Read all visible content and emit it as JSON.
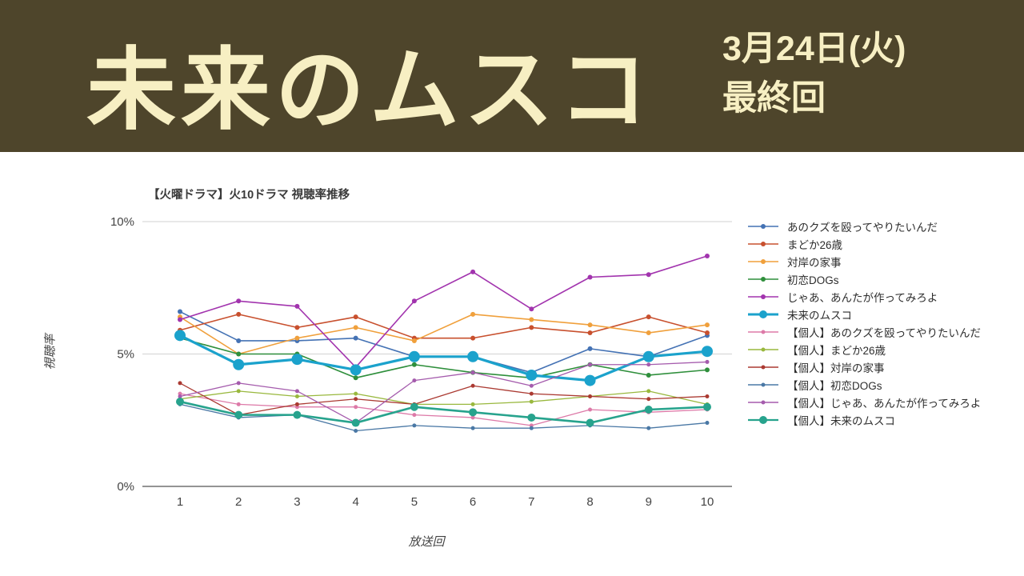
{
  "banner": {
    "title": "未来のムスコ",
    "date_line1": "3月24日(火)",
    "date_line2": "最終回",
    "bg_color": "#4e452b",
    "text_color": "#f7efc3"
  },
  "chart_data": {
    "type": "line",
    "title": "【火曜ドラマ】火10ドラマ 視聴率推移",
    "xlabel": "放送回",
    "ylabel": "視聴率",
    "x": [
      1,
      2,
      3,
      4,
      5,
      6,
      7,
      8,
      9,
      10
    ],
    "ylim": [
      0,
      10
    ],
    "yticks": [
      {
        "value": 0,
        "label": "0%"
      },
      {
        "value": 5,
        "label": "5%"
      },
      {
        "value": 10,
        "label": "10%"
      }
    ],
    "grid": true,
    "legend_position": "right",
    "axis_color": "#707070",
    "grid_color": "#d9d9d9",
    "series": [
      {
        "name": "あのクズを殴ってやりたいんだ",
        "color": "#4472b4",
        "width": 1.6,
        "marker_r": 3,
        "values": [
          6.6,
          5.5,
          5.5,
          5.6,
          4.9,
          4.9,
          4.3,
          5.2,
          4.9,
          5.7
        ]
      },
      {
        "name": "まどか26歳",
        "color": "#c8502e",
        "width": 1.6,
        "marker_r": 3,
        "values": [
          5.9,
          6.5,
          6.0,
          6.4,
          5.6,
          5.6,
          6.0,
          5.8,
          6.4,
          5.8
        ]
      },
      {
        "name": "対岸の家事",
        "color": "#f0a03c",
        "width": 1.6,
        "marker_r": 3,
        "values": [
          6.4,
          5.0,
          5.6,
          6.0,
          5.5,
          6.5,
          6.3,
          6.1,
          5.8,
          6.1
        ]
      },
      {
        "name": "初恋DOGs",
        "color": "#2f8f3c",
        "width": 1.6,
        "marker_r": 3,
        "values": [
          5.6,
          5.0,
          5.0,
          4.1,
          4.6,
          4.3,
          4.1,
          4.6,
          4.2,
          4.4
        ]
      },
      {
        "name": "じゃあ、あんたが作ってみろよ",
        "color": "#a234ae",
        "width": 1.6,
        "marker_r": 3,
        "values": [
          6.3,
          7.0,
          6.8,
          4.5,
          7.0,
          8.1,
          6.7,
          7.9,
          8.0,
          8.7
        ]
      },
      {
        "name": "未来のムスコ",
        "color": "#1ba2cc",
        "width": 3.2,
        "marker_r": 7,
        "values": [
          5.7,
          4.6,
          4.8,
          4.4,
          4.9,
          4.9,
          4.2,
          4.0,
          4.9,
          5.1
        ]
      },
      {
        "name": "【個人】あのクズを殴ってやりたいんだ",
        "color": "#dd7aa8",
        "width": 1.3,
        "marker_r": 2.5,
        "values": [
          3.5,
          3.1,
          3.0,
          3.0,
          2.7,
          2.6,
          2.3,
          2.9,
          2.8,
          2.9
        ]
      },
      {
        "name": "【個人】まどか26歳",
        "color": "#99b83e",
        "width": 1.3,
        "marker_r": 2.5,
        "values": [
          3.3,
          3.6,
          3.4,
          3.5,
          3.1,
          3.1,
          3.2,
          3.4,
          3.6,
          3.1
        ]
      },
      {
        "name": "【個人】対岸の家事",
        "color": "#ab3a32",
        "width": 1.3,
        "marker_r": 2.5,
        "values": [
          3.9,
          2.7,
          3.1,
          3.3,
          3.1,
          3.8,
          3.5,
          3.4,
          3.3,
          3.4
        ]
      },
      {
        "name": "【個人】初恋DOGs",
        "color": "#4a78a5",
        "width": 1.3,
        "marker_r": 2.5,
        "values": [
          3.1,
          2.6,
          2.7,
          2.1,
          2.3,
          2.2,
          2.2,
          2.3,
          2.2,
          2.4
        ]
      },
      {
        "name": "【個人】じゃあ、あんたが作ってみろよ",
        "color": "#a55cad",
        "width": 1.3,
        "marker_r": 2.5,
        "values": [
          3.4,
          3.9,
          3.6,
          2.4,
          4.0,
          4.3,
          3.8,
          4.6,
          4.6,
          4.7
        ]
      },
      {
        "name": "【個人】未来のムスコ",
        "color": "#27a38d",
        "width": 2.6,
        "marker_r": 5,
        "values": [
          3.2,
          2.7,
          2.7,
          2.4,
          3.0,
          2.8,
          2.6,
          2.4,
          2.9,
          3.0
        ]
      }
    ]
  }
}
